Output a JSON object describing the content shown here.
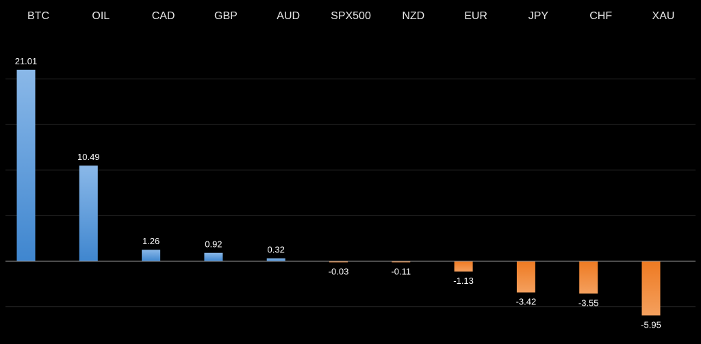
{
  "chart_data": {
    "type": "bar",
    "categories": [
      "BTC",
      "OIL",
      "CAD",
      "GBP",
      "AUD",
      "SPX500",
      "NZD",
      "EUR",
      "JPY",
      "CHF",
      "XAU"
    ],
    "values": [
      21.01,
      10.49,
      1.26,
      0.92,
      0.32,
      -0.03,
      -0.11,
      -1.13,
      -3.42,
      -3.55,
      -5.95
    ],
    "data_labels": [
      "21.01",
      "10.49",
      "1.26",
      "0.92",
      "0.32",
      "-0.03",
      "-0.11",
      "-1.13",
      "-3.42",
      "-3.55",
      "-5.95"
    ],
    "title": "",
    "xlabel": "",
    "ylabel": "",
    "ylim": [
      -6,
      22
    ],
    "gridlines": [
      -5,
      0,
      5,
      10,
      15,
      20
    ],
    "grid": true,
    "legend": "none",
    "category_axis_position": "top",
    "colors": {
      "background": "#000000",
      "positive_top": "#8ab8e8",
      "positive_bottom": "#3f86cf",
      "negative_top": "#ee7a22",
      "negative_bottom": "#f4a05e",
      "text": "#e6e6e6",
      "grid": "#2a2a2a",
      "zero_line": "#9a9a9a"
    }
  }
}
